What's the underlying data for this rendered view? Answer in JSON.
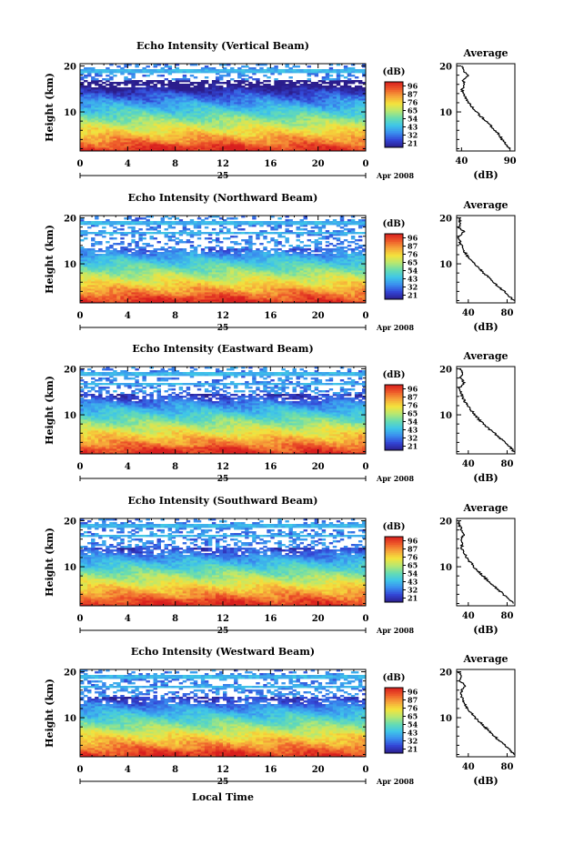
{
  "chart_data": {
    "type": "heatmap",
    "x_axis": {
      "ticks": [
        "0",
        "4",
        "8",
        "12",
        "16",
        "20",
        "0"
      ],
      "day": "25",
      "month": "Apr 2008",
      "label": "Local Time",
      "range_hours": [
        0,
        24
      ]
    },
    "y_axis": {
      "label": "Height (km)",
      "ticks": [
        "10",
        "20"
      ],
      "range_km": [
        1.5,
        20.5
      ]
    },
    "colorbar": {
      "unit": "(dB)",
      "ticks": [
        "96",
        "87",
        "76",
        "65",
        "54",
        "43",
        "32",
        "21"
      ],
      "colors": [
        "#2b1d8c",
        "#3346d6",
        "#3a8fef",
        "#3fc6e8",
        "#68dcb0",
        "#b8e870",
        "#f4e23c",
        "#f6a53a",
        "#ee5a2a",
        "#d81e1e"
      ],
      "range_db": [
        21,
        96
      ]
    },
    "panels": [
      {
        "title": "Echo Intensity (Vertical Beam)",
        "colorbar_ticks": [
          "96",
          "87",
          "76",
          "65",
          "54",
          "43",
          "32",
          "21"
        ],
        "avg_title": "Average",
        "avg_xticks": [
          "40",
          "90"
        ],
        "avg_xrange": [
          35,
          95
        ],
        "avg_xlabel": "(dB)",
        "avg_yticks": [
          "10",
          "20"
        ],
        "gap_top_km": 16.8,
        "avg_profile": [
          [
            90,
            2
          ],
          [
            86,
            3
          ],
          [
            82,
            4
          ],
          [
            79,
            5
          ],
          [
            74,
            6
          ],
          [
            70,
            7
          ],
          [
            65,
            8
          ],
          [
            60,
            9
          ],
          [
            55,
            10
          ],
          [
            51,
            11
          ],
          [
            47,
            12
          ],
          [
            44,
            13
          ],
          [
            42,
            14
          ],
          [
            40,
            15
          ],
          [
            44,
            16
          ],
          [
            41,
            17
          ],
          [
            47,
            18
          ],
          [
            42,
            19
          ],
          [
            41,
            20
          ]
        ]
      },
      {
        "title": "Echo Intensity (Northward Beam)",
        "colorbar_ticks": [
          "96",
          "87",
          "76",
          "65",
          "54",
          "43",
          "32",
          "21"
        ],
        "avg_title": "Average",
        "avg_xticks": [
          "40",
          "80"
        ],
        "avg_xrange": [
          28,
          88
        ],
        "avg_xlabel": "(dB)",
        "avg_yticks": [
          "10",
          "20"
        ],
        "gap_top_km": 13.5,
        "avg_profile": [
          [
            87,
            2
          ],
          [
            82,
            3
          ],
          [
            77,
            4
          ],
          [
            71,
            5
          ],
          [
            66,
            6
          ],
          [
            61,
            7
          ],
          [
            56,
            8
          ],
          [
            51,
            9
          ],
          [
            46,
            10
          ],
          [
            42,
            11
          ],
          [
            38,
            12
          ],
          [
            35,
            13
          ],
          [
            33,
            14
          ],
          [
            31,
            15
          ],
          [
            30,
            16
          ],
          [
            36,
            17
          ],
          [
            30,
            18
          ],
          [
            32,
            19
          ],
          [
            30,
            20
          ]
        ]
      },
      {
        "title": "Echo Intensity (Eastward Beam)",
        "colorbar_ticks": [
          "96",
          "87",
          "76",
          "65",
          "54",
          "43",
          "32",
          "21"
        ],
        "avg_title": "Average",
        "avg_xticks": [
          "40",
          "80"
        ],
        "avg_xrange": [
          28,
          88
        ],
        "avg_xlabel": "(dB)",
        "avg_yticks": [
          "10",
          "20"
        ],
        "gap_top_km": 14.5,
        "avg_profile": [
          [
            87,
            2
          ],
          [
            83,
            3
          ],
          [
            78,
            4
          ],
          [
            72,
            5
          ],
          [
            67,
            6
          ],
          [
            61,
            7
          ],
          [
            56,
            8
          ],
          [
            51,
            9
          ],
          [
            47,
            10
          ],
          [
            43,
            11
          ],
          [
            39,
            12
          ],
          [
            36,
            13
          ],
          [
            34,
            14
          ],
          [
            32,
            15
          ],
          [
            31,
            16
          ],
          [
            36,
            17
          ],
          [
            32,
            18
          ],
          [
            35,
            19
          ],
          [
            31,
            20
          ]
        ]
      },
      {
        "title": "Echo Intensity (Southward Beam)",
        "colorbar_ticks": [
          "96",
          "87",
          "76",
          "65",
          "54",
          "43",
          "32",
          "21"
        ],
        "avg_title": "Average",
        "avg_xticks": [
          "40",
          "80"
        ],
        "avg_xrange": [
          28,
          88
        ],
        "avg_xlabel": "(dB)",
        "avg_yticks": [
          "10",
          "20"
        ],
        "gap_top_km": 14.0,
        "avg_profile": [
          [
            87,
            2
          ],
          [
            82,
            3
          ],
          [
            76,
            4
          ],
          [
            71,
            5
          ],
          [
            65,
            6
          ],
          [
            60,
            7
          ],
          [
            55,
            8
          ],
          [
            50,
            9
          ],
          [
            46,
            10
          ],
          [
            42,
            11
          ],
          [
            38,
            12
          ],
          [
            36,
            13
          ],
          [
            33,
            14
          ],
          [
            34,
            15
          ],
          [
            32,
            16
          ],
          [
            36,
            17
          ],
          [
            33,
            18
          ],
          [
            31,
            19
          ],
          [
            30,
            20
          ]
        ]
      },
      {
        "title": "Echo Intensity (Westward Beam)",
        "colorbar_ticks": [
          "96",
          "87",
          "76",
          "65",
          "54",
          "43",
          "32",
          "21"
        ],
        "avg_title": "Average",
        "avg_xticks": [
          "40",
          "80"
        ],
        "avg_xrange": [
          28,
          88
        ],
        "avg_xlabel": "(dB)",
        "avg_yticks": [
          "10",
          "20"
        ],
        "gap_top_km": 14.5,
        "avg_profile": [
          [
            87,
            2
          ],
          [
            83,
            3
          ],
          [
            78,
            4
          ],
          [
            72,
            5
          ],
          [
            67,
            6
          ],
          [
            62,
            7
          ],
          [
            57,
            8
          ],
          [
            52,
            9
          ],
          [
            47,
            10
          ],
          [
            43,
            11
          ],
          [
            39,
            12
          ],
          [
            36,
            13
          ],
          [
            34,
            14
          ],
          [
            32,
            15
          ],
          [
            33,
            16
          ],
          [
            37,
            17
          ],
          [
            31,
            18
          ],
          [
            33,
            19
          ],
          [
            30,
            20
          ]
        ]
      }
    ]
  }
}
